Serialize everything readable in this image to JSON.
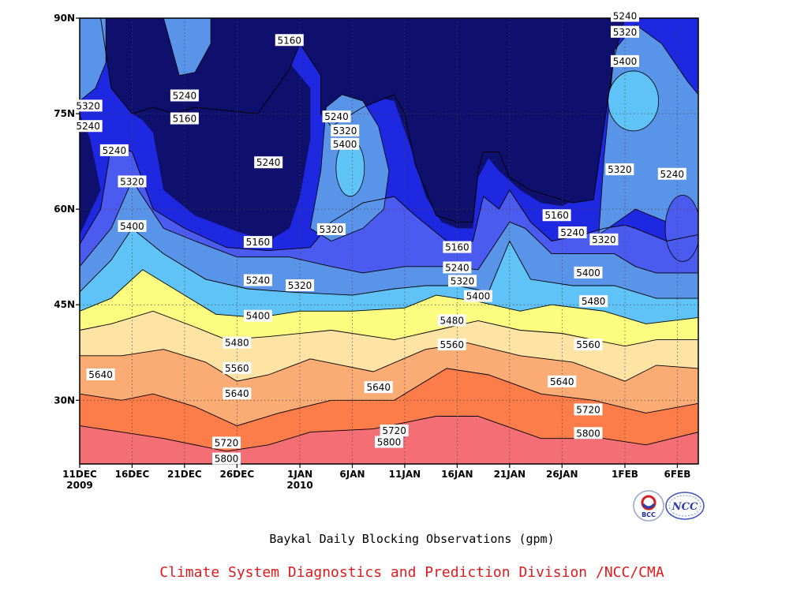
{
  "chart_data": {
    "type": "heatmap",
    "title": "Baykal Daily Blocking Observations (gpm)",
    "x_tick_labels": [
      {
        "day": 0,
        "label": "11DEC",
        "sub": "2009"
      },
      {
        "day": 5,
        "label": "16DEC",
        "sub": ""
      },
      {
        "day": 10,
        "label": "21DEC",
        "sub": ""
      },
      {
        "day": 15,
        "label": "26DEC",
        "sub": ""
      },
      {
        "day": 21,
        "label": "1JAN",
        "sub": "2010"
      },
      {
        "day": 26,
        "label": "6JAN",
        "sub": ""
      },
      {
        "day": 31,
        "label": "11JAN",
        "sub": ""
      },
      {
        "day": 36,
        "label": "16JAN",
        "sub": ""
      },
      {
        "day": 41,
        "label": "21JAN",
        "sub": ""
      },
      {
        "day": 46,
        "label": "26JAN",
        "sub": ""
      },
      {
        "day": 52,
        "label": "1FEB",
        "sub": ""
      },
      {
        "day": 57,
        "label": "6FEB",
        "sub": ""
      }
    ],
    "y_tick_labels": [
      {
        "lat": 30,
        "label": "30N"
      },
      {
        "lat": 45,
        "label": "45N"
      },
      {
        "lat": 60,
        "label": "60N"
      },
      {
        "lat": 75,
        "label": "75N"
      },
      {
        "lat": 90,
        "label": "90N"
      }
    ],
    "xlim": [
      0,
      59
    ],
    "ylim": [
      20,
      90
    ],
    "grid": true,
    "levels": [
      5160,
      5240,
      5320,
      5400,
      5480,
      5560,
      5640,
      5720,
      5800
    ],
    "level_colors": [
      "#0f106e",
      "#1d28e0",
      "#4b5bf0",
      "#5a94e8",
      "#5fc3f8",
      "#fcfc80",
      "#fde4a4",
      "#fbac74",
      "#fc7c4a",
      "#f46e76"
    ],
    "isolines": {
      "5800": [
        [
          0,
          26
        ],
        [
          4,
          25
        ],
        [
          8,
          24
        ],
        [
          14,
          22
        ],
        [
          18,
          23
        ],
        [
          22,
          25
        ],
        [
          28,
          25.5
        ],
        [
          34,
          27.5
        ],
        [
          38,
          27.5
        ],
        [
          44,
          24
        ],
        [
          50,
          24
        ],
        [
          54,
          23
        ],
        [
          59,
          25
        ]
      ],
      "5720": [
        [
          0,
          31
        ],
        [
          4,
          30
        ],
        [
          7,
          31
        ],
        [
          11,
          29
        ],
        [
          15,
          26
        ],
        [
          19,
          28
        ],
        [
          24,
          30
        ],
        [
          30,
          30
        ],
        [
          35,
          35
        ],
        [
          39,
          34
        ],
        [
          44,
          31
        ],
        [
          49,
          30
        ],
        [
          54,
          28
        ],
        [
          59,
          29.5
        ]
      ],
      "5640": [
        [
          0,
          37
        ],
        [
          4,
          37
        ],
        [
          8,
          38
        ],
        [
          12,
          36
        ],
        [
          15,
          33
        ],
        [
          18,
          34
        ],
        [
          22,
          36.5
        ],
        [
          28,
          34.5
        ],
        [
          33,
          38
        ],
        [
          37,
          39
        ],
        [
          42,
          37
        ],
        [
          47,
          36
        ],
        [
          52,
          33
        ],
        [
          55,
          35.5
        ],
        [
          59,
          35
        ]
      ],
      "5560": [
        [
          0,
          41
        ],
        [
          3,
          42
        ],
        [
          7,
          44
        ],
        [
          11,
          41.5
        ],
        [
          14,
          39.5
        ],
        [
          18,
          40
        ],
        [
          24,
          41
        ],
        [
          30,
          39.5
        ],
        [
          34,
          41
        ],
        [
          38,
          42.5
        ],
        [
          42,
          41
        ],
        [
          46,
          40.5
        ],
        [
          52,
          38.5
        ],
        [
          55,
          39.5
        ],
        [
          59,
          39.5
        ]
      ],
      "5480": [
        [
          0,
          44
        ],
        [
          3,
          46
        ],
        [
          6,
          50.5
        ],
        [
          10,
          46.5
        ],
        [
          13,
          43.5
        ],
        [
          17,
          43
        ],
        [
          21,
          44
        ],
        [
          26,
          44
        ],
        [
          31,
          44.5
        ],
        [
          34,
          46.5
        ],
        [
          38,
          45.5
        ],
        [
          42,
          44
        ],
        [
          45,
          45
        ],
        [
          50,
          44
        ],
        [
          54,
          42
        ],
        [
          59,
          43
        ]
      ],
      "5400": [
        [
          0,
          47
        ],
        [
          3,
          52
        ],
        [
          5,
          57
        ],
        [
          8,
          53
        ],
        [
          12,
          49
        ],
        [
          16,
          47.5
        ],
        [
          20,
          47
        ],
        [
          26,
          46.5
        ],
        [
          30,
          47.5
        ],
        [
          33,
          48
        ],
        [
          36,
          48
        ],
        [
          39,
          47
        ],
        [
          41,
          55
        ],
        [
          43,
          49
        ],
        [
          47,
          48
        ],
        [
          51,
          48
        ],
        [
          55,
          46
        ],
        [
          59,
          46
        ]
      ],
      "5320": [
        [
          0,
          51
        ],
        [
          3,
          57
        ],
        [
          5,
          64.5
        ],
        [
          8,
          57
        ],
        [
          11,
          55
        ],
        [
          15,
          52.5
        ],
        [
          20,
          52.5
        ],
        [
          24,
          51
        ],
        [
          27,
          50
        ],
        [
          31,
          51
        ],
        [
          35,
          51
        ],
        [
          38,
          50.5
        ],
        [
          39,
          53
        ],
        [
          41,
          58
        ],
        [
          42.5,
          57
        ],
        [
          45,
          53
        ],
        [
          49,
          53
        ],
        [
          51,
          53
        ],
        [
          53,
          51
        ],
        [
          55,
          50
        ],
        [
          59,
          50
        ]
      ],
      "5240": [
        [
          0,
          54.5
        ],
        [
          2,
          60
        ],
        [
          3,
          70
        ],
        [
          5,
          69
        ],
        [
          7,
          60
        ],
        [
          10,
          57
        ],
        [
          14,
          54
        ],
        [
          18,
          53.5
        ],
        [
          22,
          54
        ],
        [
          24,
          58
        ],
        [
          27,
          61
        ],
        [
          30,
          62
        ],
        [
          32,
          59
        ],
        [
          35,
          55
        ],
        [
          36,
          54
        ],
        [
          37.5,
          55
        ],
        [
          38.5,
          62
        ],
        [
          40,
          60
        ],
        [
          41,
          63
        ],
        [
          43,
          58
        ],
        [
          45,
          55
        ],
        [
          48,
          56
        ],
        [
          50,
          57
        ],
        [
          52,
          57.5
        ],
        [
          53,
          57
        ],
        [
          56,
          55
        ],
        [
          59,
          56
        ]
      ]
    },
    "contour_labels": [
      {
        "x": 0.8,
        "y": 76.2,
        "text": "5320"
      },
      {
        "x": 0.8,
        "y": 73.0,
        "text": "5240"
      },
      {
        "x": 3.3,
        "y": 69.2,
        "text": "5240"
      },
      {
        "x": 5.0,
        "y": 64.3,
        "text": "5320"
      },
      {
        "x": 5.0,
        "y": 57.3,
        "text": "5400"
      },
      {
        "x": 10.0,
        "y": 77.8,
        "text": "5240"
      },
      {
        "x": 10.0,
        "y": 74.2,
        "text": "5160"
      },
      {
        "x": 18.0,
        "y": 67.3,
        "text": "5240"
      },
      {
        "x": 20.0,
        "y": 86.5,
        "text": "5160"
      },
      {
        "x": 17.0,
        "y": 54.8,
        "text": "5160"
      },
      {
        "x": 17.0,
        "y": 48.8,
        "text": "5240"
      },
      {
        "x": 21.0,
        "y": 48.0,
        "text": "5320"
      },
      {
        "x": 17.0,
        "y": 43.2,
        "text": "5400"
      },
      {
        "x": 15.0,
        "y": 39.0,
        "text": "5480"
      },
      {
        "x": 15.0,
        "y": 35.0,
        "text": "5560"
      },
      {
        "x": 15.0,
        "y": 31.0,
        "text": "5640"
      },
      {
        "x": 14.0,
        "y": 23.3,
        "text": "5720"
      },
      {
        "x": 14.0,
        "y": 20.8,
        "text": "5800"
      },
      {
        "x": 2.0,
        "y": 34.0,
        "text": "5640"
      },
      {
        "x": 24.5,
        "y": 74.5,
        "text": "5240"
      },
      {
        "x": 25.3,
        "y": 72.3,
        "text": "5320"
      },
      {
        "x": 25.3,
        "y": 70.2,
        "text": "5400"
      },
      {
        "x": 24.0,
        "y": 56.8,
        "text": "5320"
      },
      {
        "x": 28.5,
        "y": 32.0,
        "text": "5640"
      },
      {
        "x": 30.0,
        "y": 25.2,
        "text": "5720"
      },
      {
        "x": 29.5,
        "y": 23.4,
        "text": "5800"
      },
      {
        "x": 36.0,
        "y": 54.0,
        "text": "5160"
      },
      {
        "x": 36.0,
        "y": 50.8,
        "text": "5240"
      },
      {
        "x": 36.5,
        "y": 48.7,
        "text": "5320"
      },
      {
        "x": 38.0,
        "y": 46.3,
        "text": "5400"
      },
      {
        "x": 35.5,
        "y": 42.5,
        "text": "5480"
      },
      {
        "x": 35.5,
        "y": 38.7,
        "text": "5560"
      },
      {
        "x": 45.5,
        "y": 59.0,
        "text": "5160"
      },
      {
        "x": 47.0,
        "y": 56.3,
        "text": "5240"
      },
      {
        "x": 50.0,
        "y": 55.2,
        "text": "5320"
      },
      {
        "x": 48.5,
        "y": 50.0,
        "text": "5400"
      },
      {
        "x": 49.0,
        "y": 45.5,
        "text": "5480"
      },
      {
        "x": 48.5,
        "y": 38.7,
        "text": "5560"
      },
      {
        "x": 46.0,
        "y": 32.9,
        "text": "5640"
      },
      {
        "x": 48.5,
        "y": 28.5,
        "text": "5720"
      },
      {
        "x": 48.5,
        "y": 24.8,
        "text": "5800"
      },
      {
        "x": 52.0,
        "y": 90.3,
        "text": "5240"
      },
      {
        "x": 52.0,
        "y": 87.8,
        "text": "5320"
      },
      {
        "x": 52.0,
        "y": 83.2,
        "text": "5400"
      },
      {
        "x": 51.5,
        "y": 66.2,
        "text": "5320"
      },
      {
        "x": 56.5,
        "y": 65.5,
        "text": "5240"
      }
    ]
  },
  "captions": {
    "title": "Baykal Daily Blocking Observations (gpm)",
    "org": "Climate System Diagnostics and Prediction Division /NCC/CMA"
  },
  "logos": {
    "bcc_text": "BCC",
    "ncc_text": "NCC"
  }
}
